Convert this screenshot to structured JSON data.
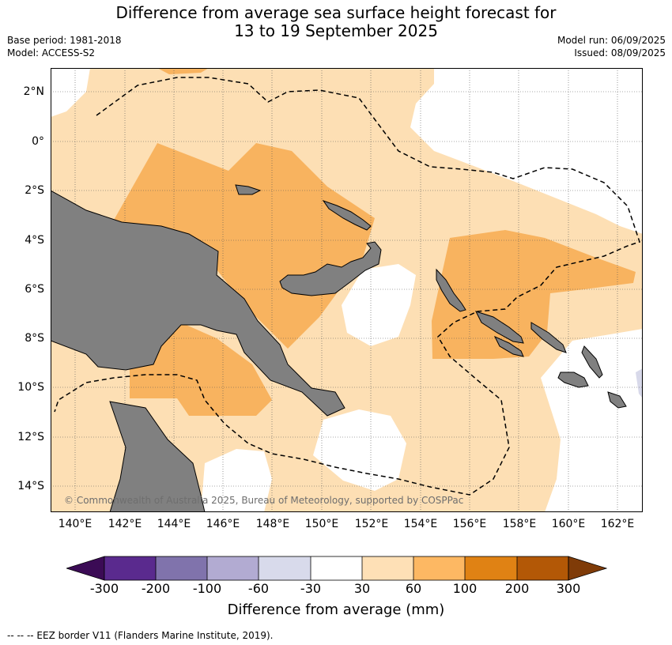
{
  "header": {
    "title_line1": "Difference from average sea surface height forecast for",
    "title_line2": "13 to 19 September 2025",
    "base_period": "Base period: 1981-2018",
    "model": "Model: ACCESS-S2",
    "model_run": "Model run: 06/09/2025",
    "issued": "Issued: 08/09/2025"
  },
  "map": {
    "lat_labels": [
      "2°N",
      "0°",
      "2°S",
      "4°S",
      "6°S",
      "8°S",
      "10°S",
      "12°S",
      "14°S"
    ],
    "lon_labels": [
      "140°E",
      "142°E",
      "144°E",
      "146°E",
      "148°E",
      "150°E",
      "152°E",
      "154°E",
      "156°E",
      "158°E",
      "160°E",
      "162°E"
    ],
    "copyright": "© Commonwealth of Australia 2025, Bureau of Meteorology, supported by COSPPac",
    "colors": {
      "land": "#808080",
      "band_30_60": "#fddfb4",
      "band_60_100": "#f8b35f",
      "band_neg60_neg30": "#d8d9ea",
      "eez_border": "#000000"
    }
  },
  "colorbar": {
    "tick_labels": [
      "-300",
      "-200",
      "-100",
      "-60",
      "-30",
      "30",
      "60",
      "100",
      "200",
      "300"
    ],
    "colors": [
      "#3b0b55",
      "#5a2a8e",
      "#8073ac",
      "#b2abd2",
      "#d8daeb",
      "#ffffff",
      "#fee0b6",
      "#fdb863",
      "#e08214",
      "#b35806",
      "#7f3b08"
    ],
    "label": "Difference from average (mm)"
  },
  "footnote": "--  --  -- EEZ border V11 (Flanders Marine Institute, 2019)."
}
